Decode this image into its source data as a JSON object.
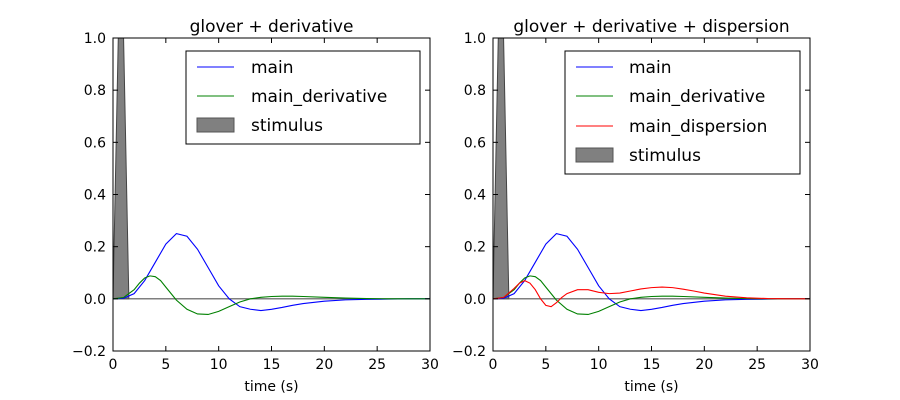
{
  "chart_data": [
    {
      "type": "line",
      "title": "glover + derivative",
      "xlabel": "time (s)",
      "ylabel": "",
      "xlim": [
        0,
        30
      ],
      "ylim": [
        -0.2,
        1.0
      ],
      "xticks": [
        0,
        5,
        10,
        15,
        20,
        25,
        30
      ],
      "yticks": [
        -0.2,
        0.0,
        0.2,
        0.4,
        0.6,
        0.8,
        1.0
      ],
      "xtick_labels": [
        "0",
        "5",
        "10",
        "15",
        "20",
        "25",
        "30"
      ],
      "ytick_labels": [
        "−0.2",
        "0.0",
        "0.2",
        "0.4",
        "0.6",
        "0.8",
        "1.0"
      ],
      "legend_placement": "top-right",
      "grid": false,
      "series": [
        {
          "name": "main",
          "color": "#0000ff",
          "x": [
            0,
            1,
            2,
            3,
            4,
            5,
            6,
            7,
            8,
            9,
            10,
            11,
            12,
            13,
            14,
            15,
            16,
            17,
            18,
            20,
            22,
            24,
            26,
            28,
            30
          ],
          "y": [
            0,
            0.002,
            0.02,
            0.07,
            0.14,
            0.21,
            0.25,
            0.24,
            0.19,
            0.12,
            0.05,
            0.0,
            -0.03,
            -0.04,
            -0.045,
            -0.04,
            -0.033,
            -0.025,
            -0.018,
            -0.009,
            -0.004,
            -0.002,
            -0.001,
            0,
            0
          ]
        },
        {
          "name": "main_derivative",
          "color": "#008000",
          "x": [
            0,
            1,
            2,
            2.5,
            3,
            3.5,
            4,
            4.5,
            5,
            5.5,
            6,
            7,
            8,
            9,
            10,
            11,
            12,
            13,
            14,
            15,
            16,
            17,
            18,
            20,
            22,
            24,
            26,
            28,
            30
          ],
          "y": [
            0,
            0.005,
            0.035,
            0.06,
            0.08,
            0.088,
            0.085,
            0.07,
            0.045,
            0.02,
            -0.005,
            -0.04,
            -0.058,
            -0.06,
            -0.048,
            -0.03,
            -0.012,
            0.0,
            0.006,
            0.009,
            0.01,
            0.01,
            0.009,
            0.006,
            0.003,
            0.001,
            0,
            0,
            0
          ]
        }
      ],
      "stimulus": {
        "name": "stimulus",
        "color": "#808080",
        "x": [
          0,
          0.5,
          1,
          1.5
        ],
        "y": [
          0,
          1.0,
          1.0,
          0
        ]
      },
      "baseline": 0.0
    },
    {
      "type": "line",
      "title": "glover + derivative + dispersion",
      "xlabel": "time (s)",
      "ylabel": "",
      "xlim": [
        0,
        30
      ],
      "ylim": [
        -0.2,
        1.0
      ],
      "xticks": [
        0,
        5,
        10,
        15,
        20,
        25,
        30
      ],
      "yticks": [
        -0.2,
        0.0,
        0.2,
        0.4,
        0.6,
        0.8,
        1.0
      ],
      "xtick_labels": [
        "0",
        "5",
        "10",
        "15",
        "20",
        "25",
        "30"
      ],
      "ytick_labels": [
        "−0.2",
        "0.0",
        "0.2",
        "0.4",
        "0.6",
        "0.8",
        "1.0"
      ],
      "legend_placement": "top-right",
      "grid": false,
      "series": [
        {
          "name": "main",
          "color": "#0000ff",
          "x": [
            0,
            1,
            2,
            3,
            4,
            5,
            6,
            7,
            8,
            9,
            10,
            11,
            12,
            13,
            14,
            15,
            16,
            17,
            18,
            20,
            22,
            24,
            26,
            28,
            30
          ],
          "y": [
            0,
            0.002,
            0.02,
            0.07,
            0.14,
            0.21,
            0.25,
            0.24,
            0.19,
            0.12,
            0.05,
            0.0,
            -0.03,
            -0.04,
            -0.045,
            -0.04,
            -0.033,
            -0.025,
            -0.018,
            -0.009,
            -0.004,
            -0.002,
            -0.001,
            0,
            0
          ]
        },
        {
          "name": "main_derivative",
          "color": "#008000",
          "x": [
            0,
            1,
            2,
            2.5,
            3,
            3.5,
            4,
            4.5,
            5,
            5.5,
            6,
            7,
            8,
            9,
            10,
            11,
            12,
            13,
            14,
            15,
            16,
            17,
            18,
            20,
            22,
            24,
            26,
            28,
            30
          ],
          "y": [
            0,
            0.005,
            0.035,
            0.06,
            0.08,
            0.088,
            0.085,
            0.07,
            0.045,
            0.02,
            -0.005,
            -0.04,
            -0.058,
            -0.06,
            -0.048,
            -0.03,
            -0.012,
            0.0,
            0.006,
            0.009,
            0.01,
            0.01,
            0.009,
            0.006,
            0.003,
            0.001,
            0,
            0,
            0
          ]
        },
        {
          "name": "main_dispersion",
          "color": "#ff0000",
          "x": [
            0,
            1,
            2,
            2.5,
            3,
            3.5,
            4,
            4.5,
            5,
            5.5,
            6,
            6.5,
            7,
            8,
            9,
            10,
            11,
            12,
            13,
            14,
            15,
            16,
            17,
            18,
            19,
            20,
            22,
            24,
            26,
            28,
            30
          ],
          "y": [
            0,
            0.005,
            0.04,
            0.06,
            0.07,
            0.06,
            0.035,
            0.0,
            -0.025,
            -0.03,
            -0.015,
            0.005,
            0.02,
            0.035,
            0.035,
            0.025,
            0.02,
            0.022,
            0.03,
            0.038,
            0.043,
            0.045,
            0.043,
            0.037,
            0.03,
            0.022,
            0.01,
            0.004,
            0.001,
            0,
            0
          ]
        }
      ],
      "stimulus": {
        "name": "stimulus",
        "color": "#808080",
        "x": [
          0,
          0.5,
          1,
          1.5
        ],
        "y": [
          0,
          1.0,
          1.0,
          0
        ]
      },
      "baseline": 0.0
    }
  ]
}
